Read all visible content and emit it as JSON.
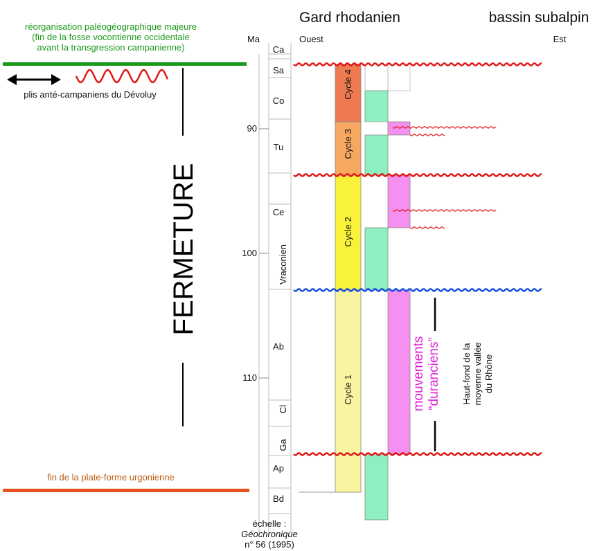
{
  "header": {
    "gard": "Gard rhodanien",
    "subalpin": "bassin subalpin",
    "ma": "Ma",
    "ouest": "Ouest",
    "est": "Est"
  },
  "left_panel": {
    "reorg_line1": "réorganisation paléogéographique majeure",
    "reorg_line2": "(fin de la fosse vocontienne occidentale",
    "reorg_line3": "avant la transgression campanienne)",
    "plis": "plis anté-campaniens du Dévoluy",
    "fermeture": "FERMETURE",
    "fin_plateforme": "fin de la plate-forme urgonienne",
    "colors": {
      "green_line": "#1a9a1a",
      "orange_line": "#e8501c",
      "wave_red": "#e01818"
    }
  },
  "time_scale": {
    "ticks": [
      {
        "age": 90,
        "label": "90"
      },
      {
        "age": 100,
        "label": "100"
      },
      {
        "age": 110,
        "label": "110"
      }
    ],
    "stages": [
      {
        "label": "Ca"
      },
      {
        "label": "Sa"
      },
      {
        "label": "Co"
      },
      {
        "label": "Tu"
      },
      {
        "label": "Ce"
      },
      {
        "label": "Vraconien"
      },
      {
        "label": "Ab"
      },
      {
        "label": "Cl"
      },
      {
        "label": "Ga"
      },
      {
        "label": "Ap"
      },
      {
        "label": "Bd"
      }
    ]
  },
  "cycles": [
    {
      "label": "Cycle 4",
      "color": "#f07a50"
    },
    {
      "label": "Cycle 3",
      "color": "#f7a860"
    },
    {
      "label": "Cycle 2",
      "color": "#f8f23a"
    },
    {
      "label": "Cycle 1",
      "color": "#f8f4a0"
    }
  ],
  "colors": {
    "green_bar": "#8ef0c0",
    "magenta_bar": "#f590f0",
    "red_wave": "#e01818",
    "blue_wave": "#1850e0",
    "magenta_text": "#e020d8"
  },
  "annotations": {
    "mouvements_line1": "mouvements",
    "mouvements_line2": "“duranciens”",
    "haut_fond_line1": "Haut-fond de la",
    "haut_fond_line2": "moyenne vallée",
    "haut_fond_line3": "du Rhône"
  },
  "footer": {
    "echelle": "échelle :",
    "geochronique": "Géochronique",
    "numero": "n° 56 (1995)"
  }
}
